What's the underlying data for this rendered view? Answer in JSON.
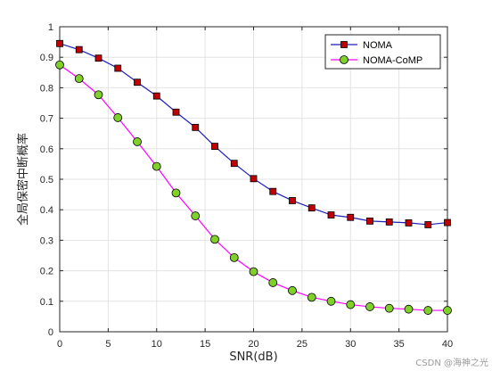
{
  "chart_data": {
    "type": "line",
    "xlabel": "SNR(dB)",
    "ylabel": "全局保密中断概率",
    "xlim": [
      0,
      40
    ],
    "ylim": [
      0,
      1
    ],
    "xticks": [
      0,
      5,
      10,
      15,
      20,
      25,
      30,
      35,
      40
    ],
    "yticks": [
      0,
      0.1,
      0.2,
      0.3,
      0.4,
      0.5,
      0.6,
      0.7,
      0.8,
      0.9,
      1
    ],
    "grid": true,
    "legend_position": "top-right",
    "x": [
      0,
      2,
      4,
      6,
      8,
      10,
      12,
      14,
      16,
      18,
      20,
      22,
      24,
      26,
      28,
      30,
      32,
      34,
      36,
      38,
      40
    ],
    "series": [
      {
        "name": "NOMA",
        "color": "#1f1fb8",
        "marker": "square",
        "marker_color": "#c00000",
        "values": [
          0.945,
          0.925,
          0.897,
          0.864,
          0.818,
          0.773,
          0.72,
          0.67,
          0.608,
          0.552,
          0.502,
          0.46,
          0.43,
          0.406,
          0.383,
          0.375,
          0.363,
          0.36,
          0.357,
          0.351,
          0.358
        ]
      },
      {
        "name": "NOMA-CoMP",
        "color": "#ff00ff",
        "marker": "circle",
        "marker_color": "#7fd12a",
        "values": [
          0.875,
          0.83,
          0.777,
          0.702,
          0.623,
          0.542,
          0.455,
          0.38,
          0.303,
          0.243,
          0.197,
          0.161,
          0.135,
          0.113,
          0.1,
          0.089,
          0.082,
          0.077,
          0.074,
          0.07,
          0.07
        ]
      }
    ]
  },
  "watermark": "CSDN @海神之光"
}
